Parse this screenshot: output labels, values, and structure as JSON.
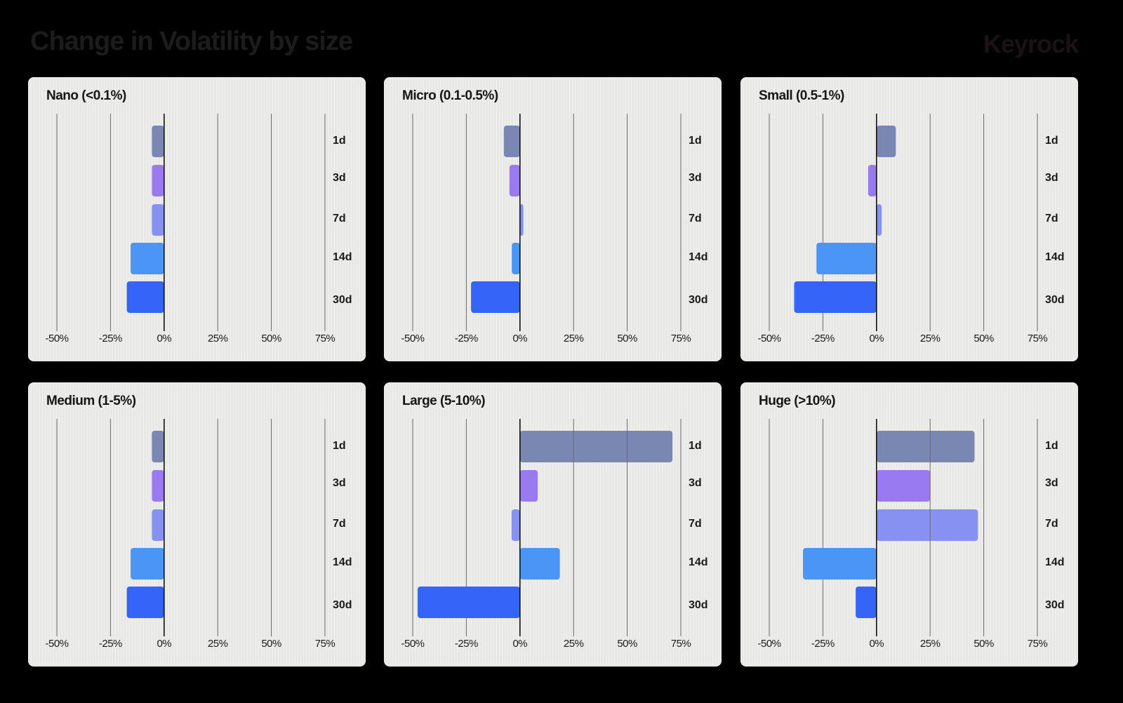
{
  "header": {
    "title": "Change in Volatility by size",
    "brand": "Keyrock"
  },
  "chart_data": [
    {
      "type": "bar",
      "orientation": "horizontal",
      "title": "Nano (<0.1%)",
      "categories": [
        "1d",
        "3d",
        "7d",
        "14d",
        "30d"
      ],
      "values": [
        -5.7,
        -5.7,
        -5.7,
        -15.6,
        -17.4
      ],
      "xlim": [
        -50,
        75
      ],
      "xticks": [
        "-50%",
        "-25%",
        "0%",
        "25%",
        "50%",
        "75%"
      ],
      "xtick_values": [
        -50,
        -25,
        0,
        25,
        50,
        75
      ],
      "grid": true
    },
    {
      "type": "bar",
      "orientation": "horizontal",
      "title": "Micro (0.1-0.5%)",
      "categories": [
        "1d",
        "3d",
        "7d",
        "14d",
        "30d"
      ],
      "values": [
        -7.5,
        -4.9,
        1.6,
        -3.8,
        -22.8
      ],
      "xlim": [
        -50,
        75
      ],
      "xticks": [
        "-50%",
        "-25%",
        "0%",
        "25%",
        "50%",
        "75%"
      ],
      "xtick_values": [
        -50,
        -25,
        0,
        25,
        50,
        75
      ],
      "grid": true
    },
    {
      "type": "bar",
      "orientation": "horizontal",
      "title": "Small (0.5-1%)",
      "categories": [
        "1d",
        "3d",
        "7d",
        "14d",
        "30d"
      ],
      "values": [
        9.0,
        -3.9,
        2.4,
        -28.0,
        -38.4
      ],
      "xlim": [
        -50,
        75
      ],
      "xticks": [
        "-50%",
        "-25%",
        "0%",
        "25%",
        "50%",
        "75%"
      ],
      "xtick_values": [
        -50,
        -25,
        0,
        25,
        50,
        75
      ],
      "grid": true
    },
    {
      "type": "bar",
      "orientation": "horizontal",
      "title": "Medium (1-5%)",
      "categories": [
        "1d",
        "3d",
        "7d",
        "14d",
        "30d"
      ],
      "values": [
        -5.7,
        -5.7,
        -5.7,
        -15.6,
        -17.4
      ],
      "xlim": [
        -50,
        75
      ],
      "xticks": [
        "-50%",
        "-25%",
        "0%",
        "25%",
        "50%",
        "75%"
      ],
      "xtick_values": [
        -50,
        -25,
        0,
        25,
        50,
        75
      ],
      "grid": true
    },
    {
      "type": "bar",
      "orientation": "horizontal",
      "title": "Large (5-10%)",
      "categories": [
        "1d",
        "3d",
        "7d",
        "14d",
        "30d"
      ],
      "values": [
        71.1,
        8.3,
        -3.9,
        18.6,
        -47.7
      ],
      "xlim": [
        -50,
        75
      ],
      "xticks": [
        "-50%",
        "-25%",
        "0%",
        "25%",
        "50%",
        "75%"
      ],
      "xtick_values": [
        -50,
        -25,
        0,
        25,
        50,
        75
      ],
      "grid": true
    },
    {
      "type": "bar",
      "orientation": "horizontal",
      "title": "Huge (>10%)",
      "categories": [
        "1d",
        "3d",
        "7d",
        "14d",
        "30d"
      ],
      "values": [
        45.7,
        25.0,
        47.3,
        -34.3,
        -9.7
      ],
      "xlim": [
        -50,
        75
      ],
      "xticks": [
        "-50%",
        "-25%",
        "0%",
        "25%",
        "50%",
        "75%"
      ],
      "xtick_values": [
        -50,
        -25,
        0,
        25,
        50,
        75
      ],
      "grid": true
    }
  ],
  "colors": {
    "1d": "#7a87b3",
    "3d": "#9a7af0",
    "7d": "#8791f2",
    "14d": "#4a95f5",
    "30d": "#3565f8",
    "grid": "#6a6a6a",
    "zero": "#111111"
  }
}
